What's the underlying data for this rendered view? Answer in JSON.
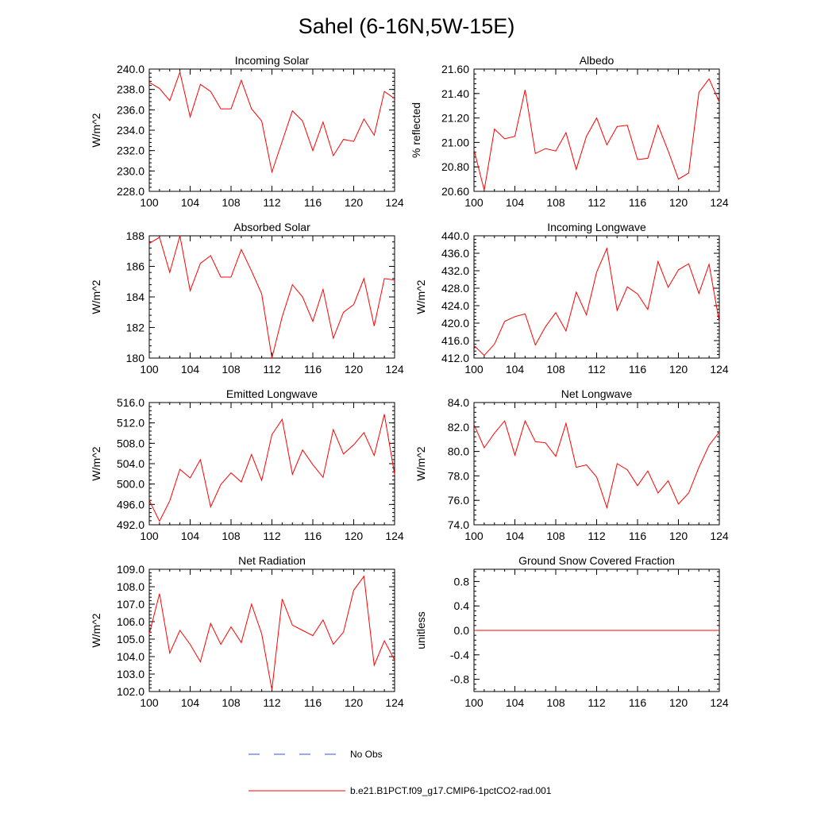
{
  "figure": {
    "title": "Sahel (6-16N,5W-15E)",
    "series_color": "#ff0000",
    "obs_color": "#3355cc",
    "legend": {
      "obs_label": "No Obs",
      "model_label": "b.e21.B1PCT.f09_g17.CMIP6-1pctCO2-rad.001"
    }
  },
  "chart_data": [
    {
      "type": "line",
      "title": "Incoming Solar",
      "ylabel": "W/m^2",
      "xlim": [
        100,
        124
      ],
      "xticks": [
        100,
        104,
        108,
        112,
        116,
        120,
        124
      ],
      "ylim": [
        228,
        240
      ],
      "yticks": [
        228,
        230,
        232,
        234,
        236,
        238,
        240
      ],
      "ytick_labels": [
        "228.0",
        "230.0",
        "232.0",
        "234.0",
        "236.0",
        "238.0",
        "240.0"
      ],
      "x": [
        100,
        101,
        102,
        103,
        104,
        105,
        106,
        107,
        108,
        109,
        110,
        111,
        112,
        113,
        114,
        115,
        116,
        117,
        118,
        119,
        120,
        121,
        122,
        123,
        124
      ],
      "values": [
        238.7,
        238.1,
        236.9,
        239.7,
        235.3,
        238.5,
        237.8,
        236.1,
        236.1,
        238.9,
        236.1,
        234.9,
        229.9,
        232.9,
        235.9,
        234.9,
        232.0,
        234.8,
        231.5,
        233.1,
        232.9,
        235.1,
        233.5,
        237.8,
        237.1
      ]
    },
    {
      "type": "line",
      "title": "Albedo",
      "ylabel": "% reflected",
      "xlim": [
        100,
        124
      ],
      "xticks": [
        100,
        104,
        108,
        112,
        116,
        120,
        124
      ],
      "ylim": [
        20.6,
        21.6
      ],
      "yticks": [
        20.6,
        20.8,
        21.0,
        21.2,
        21.4,
        21.6
      ],
      "ytick_labels": [
        "20.60",
        "20.80",
        "21.00",
        "21.20",
        "21.40",
        "21.60"
      ],
      "x": [
        100,
        101,
        102,
        103,
        104,
        105,
        106,
        107,
        108,
        109,
        110,
        111,
        112,
        113,
        114,
        115,
        116,
        117,
        118,
        119,
        120,
        121,
        122,
        123,
        124
      ],
      "values": [
        20.94,
        20.61,
        21.11,
        21.03,
        21.05,
        21.43,
        20.91,
        20.95,
        20.93,
        21.08,
        20.78,
        21.05,
        21.2,
        20.98,
        21.13,
        21.14,
        20.86,
        20.87,
        21.14,
        20.93,
        20.7,
        20.75,
        21.41,
        21.52,
        21.33
      ]
    },
    {
      "type": "line",
      "title": "Absorbed Solar",
      "ylabel": "W/m^2",
      "xlim": [
        100,
        124
      ],
      "xticks": [
        100,
        104,
        108,
        112,
        116,
        120,
        124
      ],
      "ylim": [
        180,
        188
      ],
      "yticks": [
        180,
        182,
        184,
        186,
        188
      ],
      "ytick_labels": [
        "180",
        "182",
        "184",
        "186",
        "188"
      ],
      "x": [
        100,
        101,
        102,
        103,
        104,
        105,
        106,
        107,
        108,
        109,
        110,
        111,
        112,
        113,
        114,
        115,
        116,
        117,
        118,
        119,
        120,
        121,
        122,
        123,
        124
      ],
      "values": [
        187.5,
        187.9,
        185.6,
        188.0,
        184.4,
        186.2,
        186.7,
        185.3,
        185.3,
        187.1,
        185.7,
        184.2,
        180.0,
        182.7,
        184.8,
        184.0,
        182.4,
        184.5,
        181.3,
        183.0,
        183.5,
        185.2,
        182.1,
        185.2,
        185.1
      ]
    },
    {
      "type": "line",
      "title": "Incoming Longwave",
      "ylabel": "W/m^2",
      "xlim": [
        100,
        124
      ],
      "xticks": [
        100,
        104,
        108,
        112,
        116,
        120,
        124
      ],
      "ylim": [
        412,
        440
      ],
      "yticks": [
        412,
        416,
        420,
        424,
        428,
        432,
        436,
        440
      ],
      "ytick_labels": [
        "412.0",
        "416.0",
        "420.0",
        "424.0",
        "428.0",
        "432.0",
        "436.0",
        "440.0"
      ],
      "x": [
        100,
        101,
        102,
        103,
        104,
        105,
        106,
        107,
        108,
        109,
        110,
        111,
        112,
        113,
        114,
        115,
        116,
        117,
        118,
        119,
        120,
        121,
        122,
        123,
        124
      ],
      "values": [
        414.9,
        412.6,
        415.2,
        420.4,
        421.5,
        422.1,
        415.0,
        419.2,
        422.4,
        418.2,
        427.1,
        421.9,
        431.7,
        437.1,
        422.9,
        428.3,
        426.7,
        423.1,
        434.1,
        428.2,
        432.2,
        433.6,
        426.8,
        433.5,
        420.2
      ]
    },
    {
      "type": "line",
      "title": "Emitted Longwave",
      "ylabel": "W/m^2",
      "xlim": [
        100,
        124
      ],
      "xticks": [
        100,
        104,
        108,
        112,
        116,
        120,
        124
      ],
      "ylim": [
        492,
        516
      ],
      "yticks": [
        492,
        496,
        500,
        504,
        508,
        512,
        516
      ],
      "ytick_labels": [
        "492.0",
        "496.0",
        "500.0",
        "504.0",
        "508.0",
        "512.0",
        "516.0"
      ],
      "x": [
        100,
        101,
        102,
        103,
        104,
        105,
        106,
        107,
        108,
        109,
        110,
        111,
        112,
        113,
        114,
        115,
        116,
        117,
        118,
        119,
        120,
        121,
        122,
        123,
        124
      ],
      "values": [
        496.8,
        492.7,
        496.7,
        502.9,
        501.2,
        504.8,
        495.5,
        499.9,
        502.2,
        500.4,
        505.8,
        500.7,
        509.7,
        512.7,
        501.9,
        506.7,
        503.8,
        501.3,
        510.7,
        505.9,
        507.7,
        510.1,
        505.6,
        513.7,
        501.9
      ]
    },
    {
      "type": "line",
      "title": "Net Longwave",
      "ylabel": "W/m^2",
      "xlim": [
        100,
        124
      ],
      "xticks": [
        100,
        104,
        108,
        112,
        116,
        120,
        124
      ],
      "ylim": [
        74,
        84
      ],
      "yticks": [
        74,
        76,
        78,
        80,
        82,
        84
      ],
      "ytick_labels": [
        "74.0",
        "76.0",
        "78.0",
        "80.0",
        "82.0",
        "84.0"
      ],
      "x": [
        100,
        101,
        102,
        103,
        104,
        105,
        106,
        107,
        108,
        109,
        110,
        111,
        112,
        113,
        114,
        115,
        116,
        117,
        118,
        119,
        120,
        121,
        122,
        123,
        124
      ],
      "values": [
        82.2,
        80.3,
        81.5,
        82.5,
        79.7,
        82.5,
        80.8,
        80.7,
        79.6,
        82.3,
        78.7,
        78.9,
        77.9,
        75.4,
        79.0,
        78.5,
        77.2,
        78.4,
        76.6,
        77.6,
        75.7,
        76.6,
        78.7,
        80.5,
        81.6
      ]
    },
    {
      "type": "line",
      "title": "Net Radiation",
      "ylabel": "W/m^2",
      "xlim": [
        100,
        124
      ],
      "xticks": [
        100,
        104,
        108,
        112,
        116,
        120,
        124
      ],
      "ylim": [
        102,
        109
      ],
      "yticks": [
        102,
        103,
        104,
        105,
        106,
        107,
        108,
        109
      ],
      "ytick_labels": [
        "102.0",
        "103.0",
        "104.0",
        "105.0",
        "106.0",
        "107.0",
        "108.0",
        "109.0"
      ],
      "x": [
        100,
        101,
        102,
        103,
        104,
        105,
        106,
        107,
        108,
        109,
        110,
        111,
        112,
        113,
        114,
        115,
        116,
        117,
        118,
        119,
        120,
        121,
        122,
        123,
        124
      ],
      "values": [
        105.3,
        107.6,
        104.2,
        105.5,
        104.7,
        103.7,
        105.9,
        104.7,
        105.7,
        104.8,
        107.0,
        105.3,
        102.1,
        107.3,
        105.8,
        105.5,
        105.2,
        106.1,
        104.7,
        105.4,
        107.8,
        108.6,
        103.5,
        104.9,
        103.8
      ]
    },
    {
      "type": "line",
      "title": "Ground Snow Covered Fraction",
      "ylabel": "unitless",
      "xlim": [
        100,
        124
      ],
      "xticks": [
        100,
        104,
        108,
        112,
        116,
        120,
        124
      ],
      "ylim": [
        -1.0,
        1.0
      ],
      "yticks": [
        -0.8,
        -0.4,
        0.0,
        0.4,
        0.8
      ],
      "ytick_labels": [
        "-0.8",
        "-0.4",
        "0.0",
        "0.4",
        "0.8"
      ],
      "x": [
        100,
        101,
        102,
        103,
        104,
        105,
        106,
        107,
        108,
        109,
        110,
        111,
        112,
        113,
        114,
        115,
        116,
        117,
        118,
        119,
        120,
        121,
        122,
        123,
        124
      ],
      "values": [
        0,
        0,
        0,
        0,
        0,
        0,
        0,
        0,
        0,
        0,
        0,
        0,
        0,
        0,
        0,
        0,
        0,
        0,
        0,
        0,
        0,
        0,
        0,
        0,
        0
      ]
    }
  ]
}
